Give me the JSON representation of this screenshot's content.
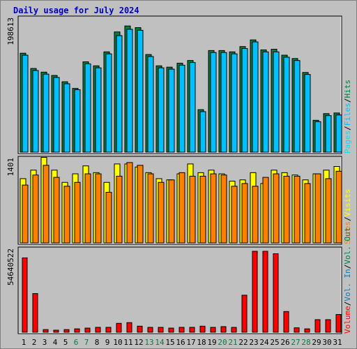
{
  "title": "Daily usage for July 2024",
  "colors": {
    "background": "#c0c0c0",
    "title": "#0000c0",
    "hits": "#008040",
    "files": "#00c0ff",
    "pages": "#00e0ff",
    "visits": "#ffff00",
    "sites": "#ff8000",
    "kbytes_in": "#0080c0",
    "kbytes_out": "#ff0000",
    "day_weekday": "#000000",
    "day_weekend": "#008040"
  },
  "right_labels": {
    "top": [
      "Pages",
      "Files",
      "Hits"
    ],
    "middle": [
      "Sites",
      "Visits"
    ],
    "bottom": [
      "Volume",
      "Vol. In",
      "Vol. Out"
    ],
    "separator": "/"
  },
  "chart_data": [
    {
      "type": "bar",
      "name": "hits-files-pages",
      "ymax_label": "198613",
      "ylim": [
        0,
        198613
      ],
      "categories": [
        "1",
        "2",
        "3",
        "4",
        "5",
        "6",
        "7",
        "8",
        "9",
        "10",
        "11",
        "12",
        "13",
        "14",
        "15",
        "16",
        "17",
        "18",
        "19",
        "20",
        "21",
        "22",
        "23",
        "24",
        "25",
        "26",
        "27",
        "28",
        "29",
        "30",
        "31"
      ],
      "series": [
        {
          "name": "Hits",
          "values": [
            149000,
            126000,
            120500,
            115500,
            106000,
            96000,
            136000,
            130000,
            151000,
            181000,
            190000,
            187500,
            147000,
            130000,
            128000,
            134000,
            138000,
            64000,
            153000,
            153000,
            151000,
            159000,
            169000,
            154000,
            155000,
            146000,
            141000,
            120000,
            48000,
            58000,
            59000
          ]
        },
        {
          "name": "Files",
          "values": [
            146000,
            123000,
            117500,
            112500,
            103000,
            94000,
            133000,
            127000,
            148000,
            175500,
            185000,
            183500,
            144000,
            127000,
            125000,
            131000,
            135000,
            61000,
            150000,
            150000,
            148000,
            156000,
            166000,
            151000,
            151000,
            143000,
            138000,
            117000,
            46000,
            55000,
            56000
          ]
        }
      ]
    },
    {
      "type": "bar",
      "name": "visits-sites",
      "ymax_label": "1401",
      "ylim": [
        0,
        1401
      ],
      "categories": [
        "1",
        "2",
        "3",
        "4",
        "5",
        "6",
        "7",
        "8",
        "9",
        "10",
        "11",
        "12",
        "13",
        "14",
        "15",
        "16",
        "17",
        "18",
        "19",
        "20",
        "21",
        "22",
        "23",
        "24",
        "25",
        "26",
        "27",
        "28",
        "29",
        "30",
        "31"
      ],
      "series": [
        {
          "name": "Visits",
          "values": [
            1093,
            1238,
            1455,
            1238,
            1030,
            1175,
            1310,
            1195,
            1030,
            1343,
            1343,
            1290,
            1195,
            1093,
            1072,
            1175,
            1343,
            1195,
            1238,
            1175,
            1051,
            1072,
            1195,
            1010,
            1238,
            1195,
            1155,
            1072,
            1175,
            1238,
            1300
          ]
        },
        {
          "name": "Sites",
          "values": [
            984,
            1155,
            1320,
            1115,
            964,
            1030,
            1175,
            1175,
            861,
            1135,
            1367,
            1320,
            1175,
            1030,
            1072,
            1195,
            1135,
            1135,
            1175,
            1155,
            964,
            1010,
            964,
            1115,
            1175,
            1135,
            1135,
            1010,
            1175,
            1093,
            1219
          ]
        }
      ]
    },
    {
      "type": "bar",
      "name": "volume",
      "ymax_label": "54640522",
      "ylim": [
        0,
        54640522
      ],
      "categories": [
        "1",
        "2",
        "3",
        "4",
        "5",
        "6",
        "7",
        "8",
        "9",
        "10",
        "11",
        "12",
        "13",
        "14",
        "15",
        "16",
        "17",
        "18",
        "19",
        "20",
        "21",
        "22",
        "23",
        "24",
        "25",
        "26",
        "27",
        "28",
        "29",
        "30",
        "31"
      ],
      "series": [
        {
          "name": "Volume",
          "values": [
            50200000,
            26100000,
            1800000,
            1400000,
            1800000,
            2300000,
            2800000,
            3300000,
            3300000,
            6000000,
            6500000,
            4100000,
            3300000,
            3300000,
            2800000,
            3300000,
            3300000,
            4100000,
            3300000,
            3800000,
            3300000,
            25000000,
            54640522,
            54640522,
            53000000,
            14000000,
            3000000,
            2300000,
            8500000,
            8500000,
            12000000
          ]
        }
      ]
    }
  ]
}
